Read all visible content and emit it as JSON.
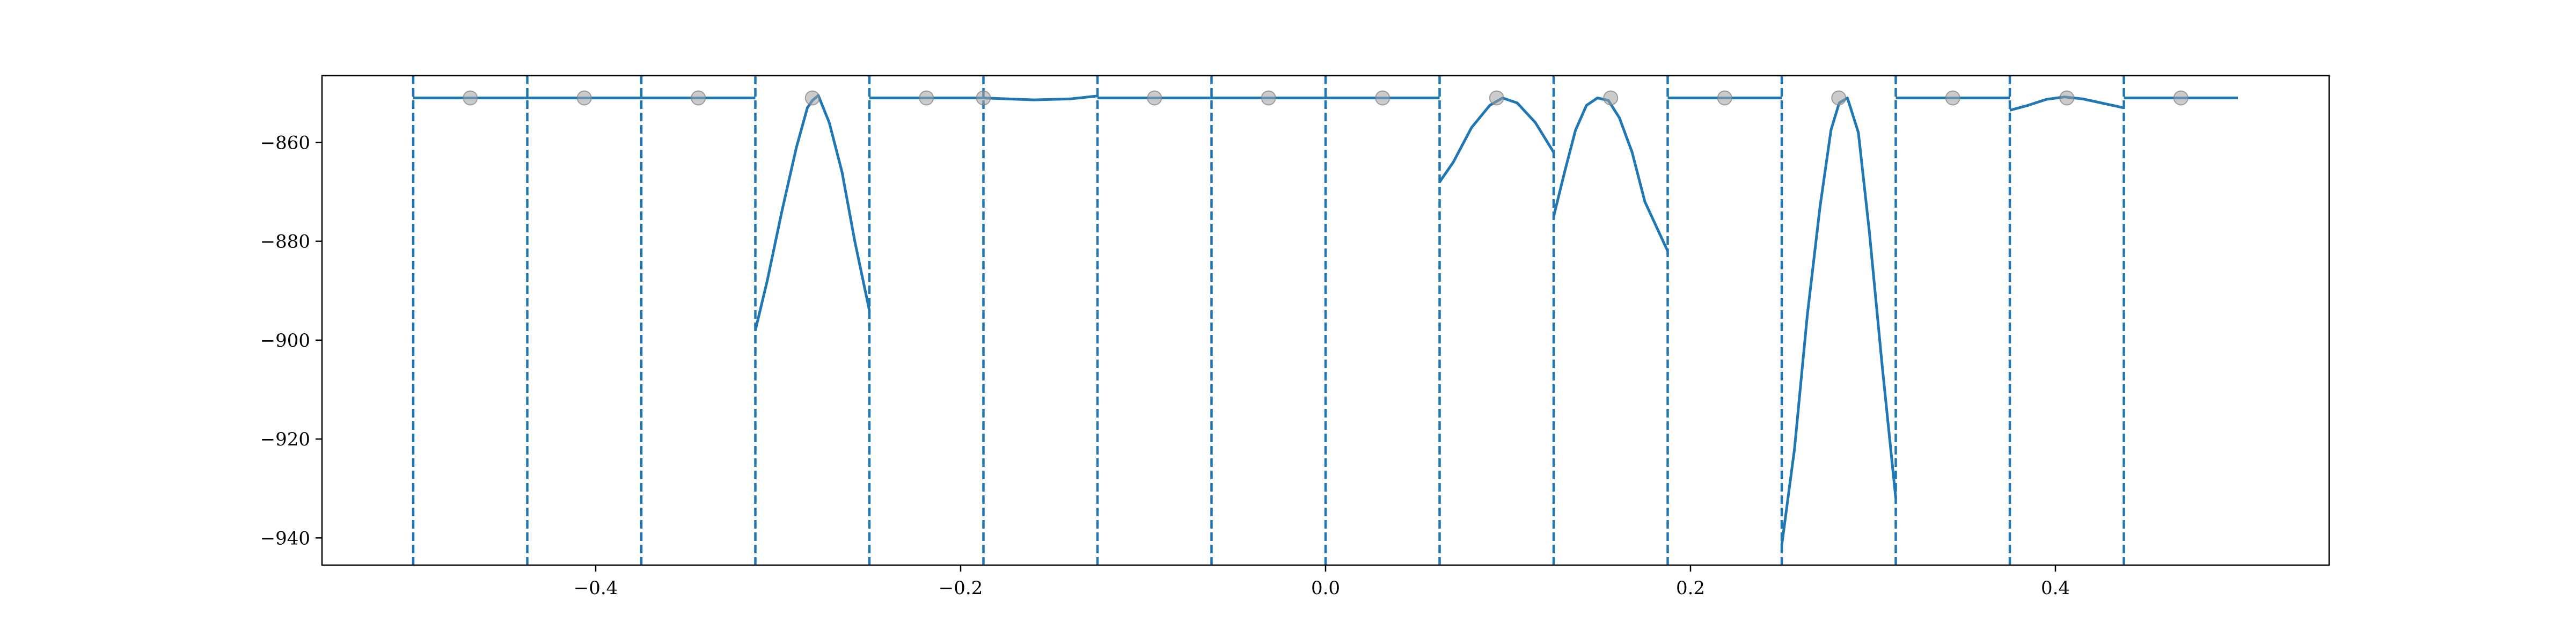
{
  "chart_data": {
    "type": "line",
    "title": "",
    "xlabel": "",
    "ylabel": "",
    "xlim": [
      -0.55,
      0.55
    ],
    "ylim": [
      -945.5,
      -846.5
    ],
    "grid": false,
    "x_ticks": [
      -0.4,
      -0.2,
      0.0,
      0.2,
      0.4
    ],
    "x_tick_labels": [
      "−0.4",
      "−0.2",
      "0.0",
      "0.2",
      "0.4"
    ],
    "y_ticks": [
      -860,
      -880,
      -900,
      -920,
      -940
    ],
    "y_tick_labels": [
      "−860",
      "−880",
      "−900",
      "−920",
      "−940"
    ],
    "colors": {
      "line": "#1f77b4",
      "markers": "#a0a0a0"
    },
    "boundaries": [
      -0.5,
      -0.4375,
      -0.375,
      -0.3125,
      -0.25,
      -0.1875,
      -0.125,
      -0.0625,
      0.0,
      0.0625,
      0.125,
      0.1875,
      0.25,
      0.3125,
      0.375,
      0.4375
    ],
    "markers": {
      "x": [
        -0.46875,
        -0.40625,
        -0.34375,
        -0.28125,
        -0.21875,
        -0.1875,
        -0.09375,
        -0.03125,
        0.03125,
        0.09375,
        0.15625,
        0.21875,
        0.28125,
        0.34375,
        0.40625,
        0.46875
      ],
      "y": [
        -851,
        -851,
        -851,
        -851,
        -851,
        -851,
        -851,
        -851,
        -851,
        -851,
        -851,
        -851,
        -851,
        -851,
        -851,
        -851
      ]
    },
    "series": [
      {
        "segments": [
          {
            "x": [
              -0.5,
              -0.3125
            ],
            "y": [
              -851,
              -851
            ]
          },
          {
            "x": [
              -0.3125,
              -0.306,
              -0.298,
              -0.29,
              -0.284,
              -0.28125,
              -0.278,
              -0.272,
              -0.265,
              -0.258,
              -0.25
            ],
            "y": [
              -898,
              -888,
              -874,
              -861,
              -853,
              -851.5,
              -850.5,
              -856,
              -866,
              -880,
              -894
            ]
          },
          {
            "x": [
              -0.25,
              -0.1875
            ],
            "y": [
              -851,
              -851
            ]
          },
          {
            "x": [
              -0.1875,
              -0.16,
              -0.14,
              -0.125
            ],
            "y": [
              -851,
              -851.4,
              -851.2,
              -850.6
            ]
          },
          {
            "x": [
              -0.125,
              0.0625
            ],
            "y": [
              -851,
              -851
            ]
          },
          {
            "x": [
              0.0625,
              0.07,
              0.08,
              0.09,
              0.097,
              0.105,
              0.115,
              0.125
            ],
            "y": [
              -868,
              -864,
              -857,
              -852.5,
              -851,
              -852,
              -856,
              -862
            ]
          },
          {
            "x": [
              0.125,
              0.131,
              0.137,
              0.143,
              0.149,
              0.155,
              0.161,
              0.168,
              0.175,
              0.1875
            ],
            "y": [
              -875,
              -866,
              -857.5,
              -852.5,
              -851,
              -851.5,
              -855,
              -862,
              -872,
              -882
            ]
          },
          {
            "x": [
              0.1875,
              0.25
            ],
            "y": [
              -851,
              -851
            ]
          },
          {
            "x": [
              0.25,
              0.257,
              0.264,
              0.271,
              0.277,
              0.2815,
              0.286,
              0.292,
              0.298,
              0.305,
              0.3125
            ],
            "y": [
              -941.5,
              -922,
              -895,
              -873,
              -857.5,
              -852,
              -851,
              -858,
              -878,
              -905,
              -932
            ]
          },
          {
            "x": [
              0.3125,
              0.375
            ],
            "y": [
              -851,
              -851
            ]
          },
          {
            "x": [
              0.375,
              0.385,
              0.395,
              0.405,
              0.415,
              0.425,
              0.4375
            ],
            "y": [
              -853.5,
              -852.5,
              -851.3,
              -850.8,
              -851.2,
              -852,
              -853
            ]
          },
          {
            "x": [
              0.4375,
              0.5
            ],
            "y": [
              -851,
              -851
            ]
          }
        ]
      }
    ]
  }
}
